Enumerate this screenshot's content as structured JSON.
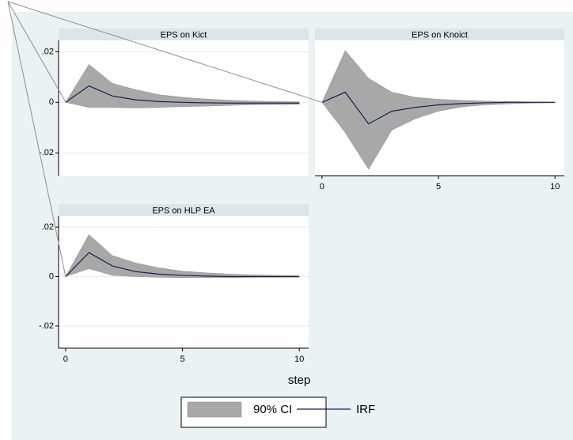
{
  "chart_data": [
    {
      "type": "line",
      "title": "EPS on Kict",
      "x": [
        0,
        1,
        2,
        3,
        4,
        5,
        6,
        7,
        8,
        9,
        10
      ],
      "series": [
        {
          "name": "90% CI",
          "color": "#a8a8a8",
          "upper": [
            0,
            0.015,
            0.0075,
            0.005,
            0.003,
            0.002,
            0.0013,
            0.0008,
            0.0005,
            0.0003,
            0.0002
          ],
          "lower": [
            0,
            -0.002,
            -0.002,
            -0.0022,
            -0.002,
            -0.0017,
            -0.0015,
            -0.0012,
            -0.001,
            -0.0009,
            -0.0008
          ]
        },
        {
          "name": "IRF",
          "color": "#1b1f4f",
          "values": [
            0,
            0.0065,
            0.0025,
            0.001,
            0.0003,
            0,
            -0.0002,
            -0.0003,
            -0.0003,
            -0.0003,
            -0.0003
          ]
        }
      ],
      "xlim": [
        -0.3,
        10.4
      ],
      "ylim": [
        -0.029,
        0.0245
      ],
      "yticks": [
        {
          "value": 0.02,
          "label": ".02"
        },
        0,
        {
          "value": -0.02,
          "label": "-.02"
        }
      ],
      "grid": true
    },
    {
      "type": "line",
      "title": "EPS on Knoict",
      "x": [
        0,
        1,
        2,
        3,
        4,
        5,
        6,
        7,
        8,
        9,
        10
      ],
      "series": [
        {
          "color": "#a8a8a8",
          "upper": [
            0,
            0.0205,
            0.0095,
            0.004,
            0.002,
            0.0012,
            0.0008,
            0.0005,
            0.0003,
            0.0002,
            0.0001
          ],
          "lower": [
            0,
            -0.012,
            -0.0265,
            -0.011,
            -0.0065,
            -0.0035,
            -0.0018,
            -0.001,
            -0.0006,
            -0.0003,
            -0.0002
          ]
        },
        {
          "color": "#1b1f4f",
          "values": [
            0,
            0.004,
            -0.0085,
            -0.0035,
            -0.002,
            -0.001,
            -0.0005,
            -0.0002,
            0,
            0,
            0
          ]
        }
      ],
      "xlim": [
        -0.3,
        10.4
      ],
      "ylim": [
        -0.029,
        0.0245
      ],
      "xticks": [
        0,
        5,
        10
      ],
      "grid": false
    },
    {
      "type": "line",
      "title": "EPS on HLP EA",
      "xlabel": "step",
      "x": [
        0,
        1,
        2,
        3,
        4,
        5,
        6,
        7,
        8,
        9,
        10
      ],
      "series": [
        {
          "color": "#a8a8a8",
          "upper": [
            0,
            0.017,
            0.0085,
            0.0055,
            0.0035,
            0.0022,
            0.0015,
            0.001,
            0.0007,
            0.0005,
            0.0003
          ],
          "lower": [
            0,
            0.0032,
            0.0005,
            0,
            -0.0003,
            -0.0004,
            -0.0004,
            -0.0004,
            -0.0003,
            -0.0003,
            -0.0002
          ]
        },
        {
          "color": "#1b1f4f",
          "values": [
            0,
            0.0097,
            0.0043,
            0.002,
            0.001,
            0.0005,
            0.0002,
            0,
            0,
            0,
            0
          ]
        }
      ],
      "xlim": [
        -0.3,
        10.4
      ],
      "ylim": [
        -0.029,
        0.0245
      ],
      "xticks": [
        0,
        5,
        10
      ],
      "yticks": [
        {
          "value": 0.02,
          "label": ".02"
        },
        0,
        {
          "value": -0.02,
          "label": "-.02"
        }
      ],
      "grid": true
    }
  ]
}
